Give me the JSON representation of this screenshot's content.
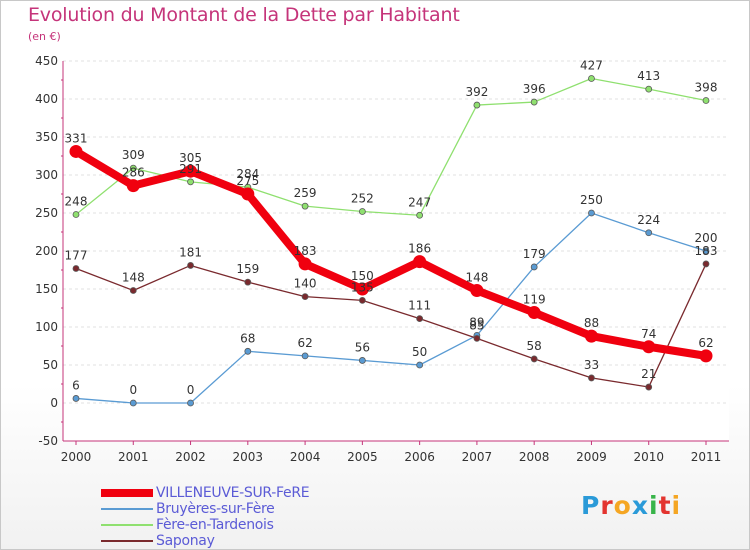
{
  "header": {
    "title": "Evolution du Montant de la Dette par Habitant",
    "unit": "(en €)"
  },
  "logo": {
    "text": "Proxiti",
    "letters": [
      "P",
      "r",
      "o",
      "x",
      "i",
      "t",
      "i"
    ],
    "colors": [
      "#2a9ad8",
      "#e3342f",
      "#f5a623",
      "#2a9ad8",
      "#38b449",
      "#e3342f",
      "#f5a623"
    ]
  },
  "chart_data": {
    "type": "line",
    "title": "Evolution du Montant de la Dette par Habitant",
    "ylabel": "(en €)",
    "xlabel": "",
    "x": [
      "2000",
      "2001",
      "2002",
      "2003",
      "2004",
      "2005",
      "2006",
      "2007",
      "2008",
      "2009",
      "2010",
      "2011"
    ],
    "ylim": [
      -50,
      450
    ],
    "yticks": [
      "-50",
      "0",
      "50",
      "100",
      "150",
      "200",
      "250",
      "300",
      "350",
      "400",
      "450"
    ],
    "grid": "horizontal",
    "legend_position": "bottom-left",
    "series": [
      {
        "name": "VILLENEUVE-SUR-FeRE",
        "color": "#f0000f",
        "values": [
          331,
          286,
          305,
          275,
          183,
          150,
          186,
          148,
          119,
          88,
          74,
          62
        ],
        "labels": [
          "331",
          "286",
          "305",
          "275",
          "183",
          "150",
          "186",
          "148",
          "119",
          "88",
          "74",
          "62"
        ]
      },
      {
        "name": "Bruyères-sur-Fère",
        "color": "#5a9bd3",
        "values": [
          6,
          0,
          0,
          68,
          62,
          56,
          50,
          89,
          179,
          250,
          224,
          200
        ],
        "labels": [
          "6",
          "0",
          "0",
          "68",
          "62",
          "56",
          "50",
          "89",
          "179",
          "250",
          "224",
          "200"
        ]
      },
      {
        "name": "Fère-en-Tardenois",
        "color": "#8fe06f",
        "values": [
          248,
          309,
          291,
          284,
          259,
          252,
          247,
          392,
          396,
          427,
          413,
          398
        ],
        "labels": [
          "248",
          "309",
          "291",
          "284",
          "259",
          "252",
          "247",
          "392",
          "396",
          "427",
          "413",
          "398"
        ]
      },
      {
        "name": "Saponay",
        "color": "#7a2a2e",
        "values": [
          177,
          148,
          181,
          159,
          140,
          135,
          111,
          85,
          58,
          33,
          21,
          183
        ],
        "labels": [
          "177",
          "148",
          "181",
          "159",
          "140",
          "135",
          "111",
          "85",
          "58",
          "33",
          "21",
          "183"
        ]
      }
    ]
  }
}
